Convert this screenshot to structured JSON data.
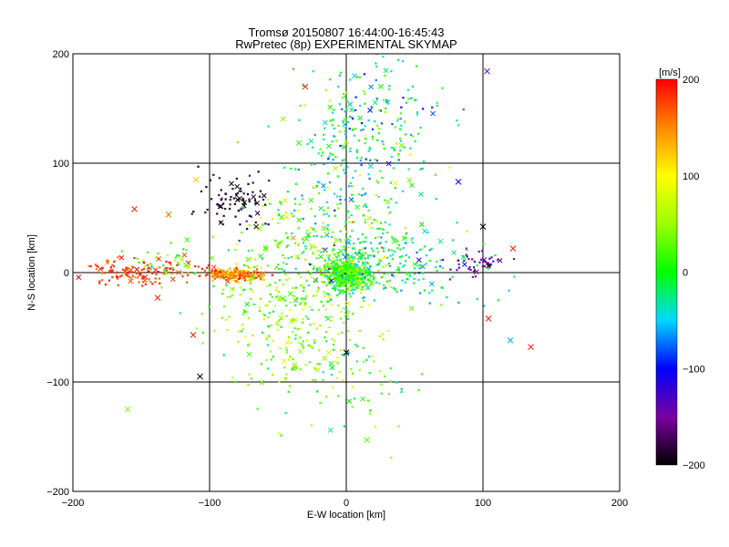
{
  "chart_data": {
    "type": "scatter",
    "title": "Tromsø 20150807 16:44:00-16:45:43",
    "subtitle": "RwPretec (8p) EXPERIMENTAL SKYMAP",
    "xlabel": "E-W location [km]",
    "ylabel": "N-S location [km]",
    "xlim": [
      -200,
      200
    ],
    "ylim": [
      -200,
      200
    ],
    "x_ticks": [
      -200,
      -100,
      0,
      100,
      200
    ],
    "y_ticks": [
      -200,
      -100,
      0,
      100,
      200
    ],
    "grid_lines": {
      "x": [
        -100,
        0,
        100
      ],
      "y": [
        -100,
        0,
        100
      ]
    },
    "colorbar": {
      "label": "[m/s]",
      "range": [
        -200,
        200
      ],
      "ticks": [
        200,
        100,
        0,
        -100,
        -200
      ]
    },
    "clusters": [
      {
        "x": 0,
        "y": 0,
        "sx": 9,
        "sy": 8,
        "n": 500,
        "v": 20,
        "vs": 35
      },
      {
        "x": -82,
        "y": -2,
        "sx": 10,
        "sy": 3,
        "n": 190,
        "v": 150,
        "vs": 30
      },
      {
        "x": -150,
        "y": 0,
        "sx": 22,
        "sy": 6,
        "n": 130,
        "v": 185,
        "vs": 20
      },
      {
        "x": -80,
        "y": 65,
        "sx": 12,
        "sy": 10,
        "n": 90,
        "v": -190,
        "vs": 10
      },
      {
        "x": 95,
        "y": 8,
        "sx": 10,
        "sy": 5,
        "n": 45,
        "v": -150,
        "vs": 20
      },
      {
        "x": 5,
        "y": 100,
        "sx": 25,
        "sy": 45,
        "n": 260,
        "v": -10,
        "vs": 40
      },
      {
        "x": -40,
        "y": -35,
        "sx": 28,
        "sy": 35,
        "n": 320,
        "v": 40,
        "vs": 30
      },
      {
        "x": 35,
        "y": 10,
        "sx": 35,
        "sy": 20,
        "n": 200,
        "v": -20,
        "vs": 30
      },
      {
        "x": 20,
        "y": 150,
        "sx": 25,
        "sy": 25,
        "n": 80,
        "v": -40,
        "vs": 40
      },
      {
        "x": -20,
        "y": 30,
        "sx": 30,
        "sy": 25,
        "n": 160,
        "v": 10,
        "vs": 60
      },
      {
        "x": 0,
        "y": -80,
        "sx": 30,
        "sy": 40,
        "n": 90,
        "v": 20,
        "vs": 40
      },
      {
        "x": -130,
        "y": 10,
        "sx": 15,
        "sy": 8,
        "n": 40,
        "v": 20,
        "vs": 30
      }
    ],
    "marked_points": [
      {
        "x": 103,
        "y": 184,
        "v": -130
      },
      {
        "x": -30,
        "y": 170,
        "v": 190
      },
      {
        "x": -110,
        "y": 85,
        "v": 120
      },
      {
        "x": -130,
        "y": 53,
        "v": 160
      },
      {
        "x": -160,
        "y": -125,
        "v": 40
      },
      {
        "x": -107,
        "y": -95,
        "v": -200
      },
      {
        "x": 0,
        "y": -73,
        "v": -200
      },
      {
        "x": 15,
        "y": -153,
        "v": 30
      },
      {
        "x": 122,
        "y": 22,
        "v": 190
      },
      {
        "x": 120,
        "y": -62,
        "v": -60
      },
      {
        "x": 100,
        "y": 42,
        "v": -200
      },
      {
        "x": 82,
        "y": 83,
        "v": -100
      },
      {
        "x": -112,
        "y": -57,
        "v": 190
      },
      {
        "x": -138,
        "y": -23,
        "v": 190
      },
      {
        "x": 104,
        "y": -42,
        "v": 190
      },
      {
        "x": 135,
        "y": -68,
        "v": 190
      },
      {
        "x": -155,
        "y": 58,
        "v": 190
      }
    ]
  }
}
